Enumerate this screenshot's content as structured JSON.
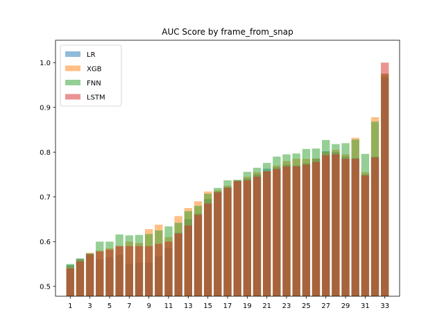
{
  "chart_data": {
    "type": "bar",
    "title": "AUC Score by frame_from_snap",
    "xlabel": "",
    "ylabel": "",
    "categories": [
      1,
      2,
      3,
      4,
      5,
      6,
      7,
      8,
      9,
      10,
      11,
      12,
      13,
      14,
      15,
      16,
      17,
      18,
      19,
      20,
      21,
      22,
      23,
      24,
      25,
      26,
      27,
      28,
      29,
      30,
      31,
      32,
      33
    ],
    "xticks": [
      1,
      3,
      5,
      7,
      9,
      11,
      13,
      15,
      17,
      19,
      21,
      23,
      25,
      27,
      29,
      31,
      33
    ],
    "ylim": [
      0.478,
      1.05
    ],
    "yticks": [
      0.5,
      0.6,
      0.7,
      0.8,
      0.9,
      1.0
    ],
    "ytick_labels": [
      "0.5",
      "0.6",
      "0.7",
      "0.8",
      "0.9",
      "1.0"
    ],
    "legend_position": "top-left",
    "series": [
      {
        "name": "LR",
        "color": "#1f77b4",
        "values": [
          0.548,
          0.562,
          0.574,
          0.56,
          0.565,
          0.57,
          0.55,
          0.553,
          0.553,
          0.567,
          0.586,
          0.62,
          0.65,
          0.663,
          0.695,
          0.712,
          0.722,
          0.737,
          0.741,
          0.75,
          0.763,
          0.766,
          0.772,
          0.77,
          0.775,
          0.785,
          0.802,
          0.8,
          0.79,
          0.787,
          0.75,
          0.79,
          0.968
        ]
      },
      {
        "name": "XGB",
        "color": "#ff7f0e",
        "values": [
          0.545,
          0.56,
          0.575,
          0.58,
          0.585,
          0.59,
          0.6,
          0.597,
          0.628,
          0.638,
          0.61,
          0.657,
          0.675,
          0.69,
          0.712,
          0.715,
          0.725,
          0.737,
          0.745,
          0.755,
          0.758,
          0.77,
          0.78,
          0.785,
          0.785,
          0.786,
          0.8,
          0.805,
          0.795,
          0.832,
          0.755,
          0.878,
          0.975
        ]
      },
      {
        "name": "FNN",
        "color": "#2ca02c",
        "values": [
          0.55,
          0.562,
          0.573,
          0.6,
          0.6,
          0.616,
          0.614,
          0.615,
          0.617,
          0.625,
          0.634,
          0.642,
          0.668,
          0.68,
          0.707,
          0.72,
          0.737,
          0.738,
          0.756,
          0.765,
          0.776,
          0.79,
          0.795,
          0.797,
          0.807,
          0.808,
          0.827,
          0.818,
          0.82,
          0.828,
          0.796,
          0.868,
          0.975
        ]
      },
      {
        "name": "LSTM",
        "color": "#d62728",
        "values": [
          0.54,
          0.556,
          0.571,
          0.578,
          0.582,
          0.59,
          0.59,
          0.59,
          0.59,
          0.595,
          0.6,
          0.618,
          0.636,
          0.66,
          0.685,
          0.71,
          0.72,
          0.735,
          0.737,
          0.745,
          0.757,
          0.762,
          0.768,
          0.768,
          0.772,
          0.778,
          0.793,
          0.795,
          0.785,
          0.785,
          0.748,
          0.788,
          1.0
        ]
      }
    ]
  }
}
